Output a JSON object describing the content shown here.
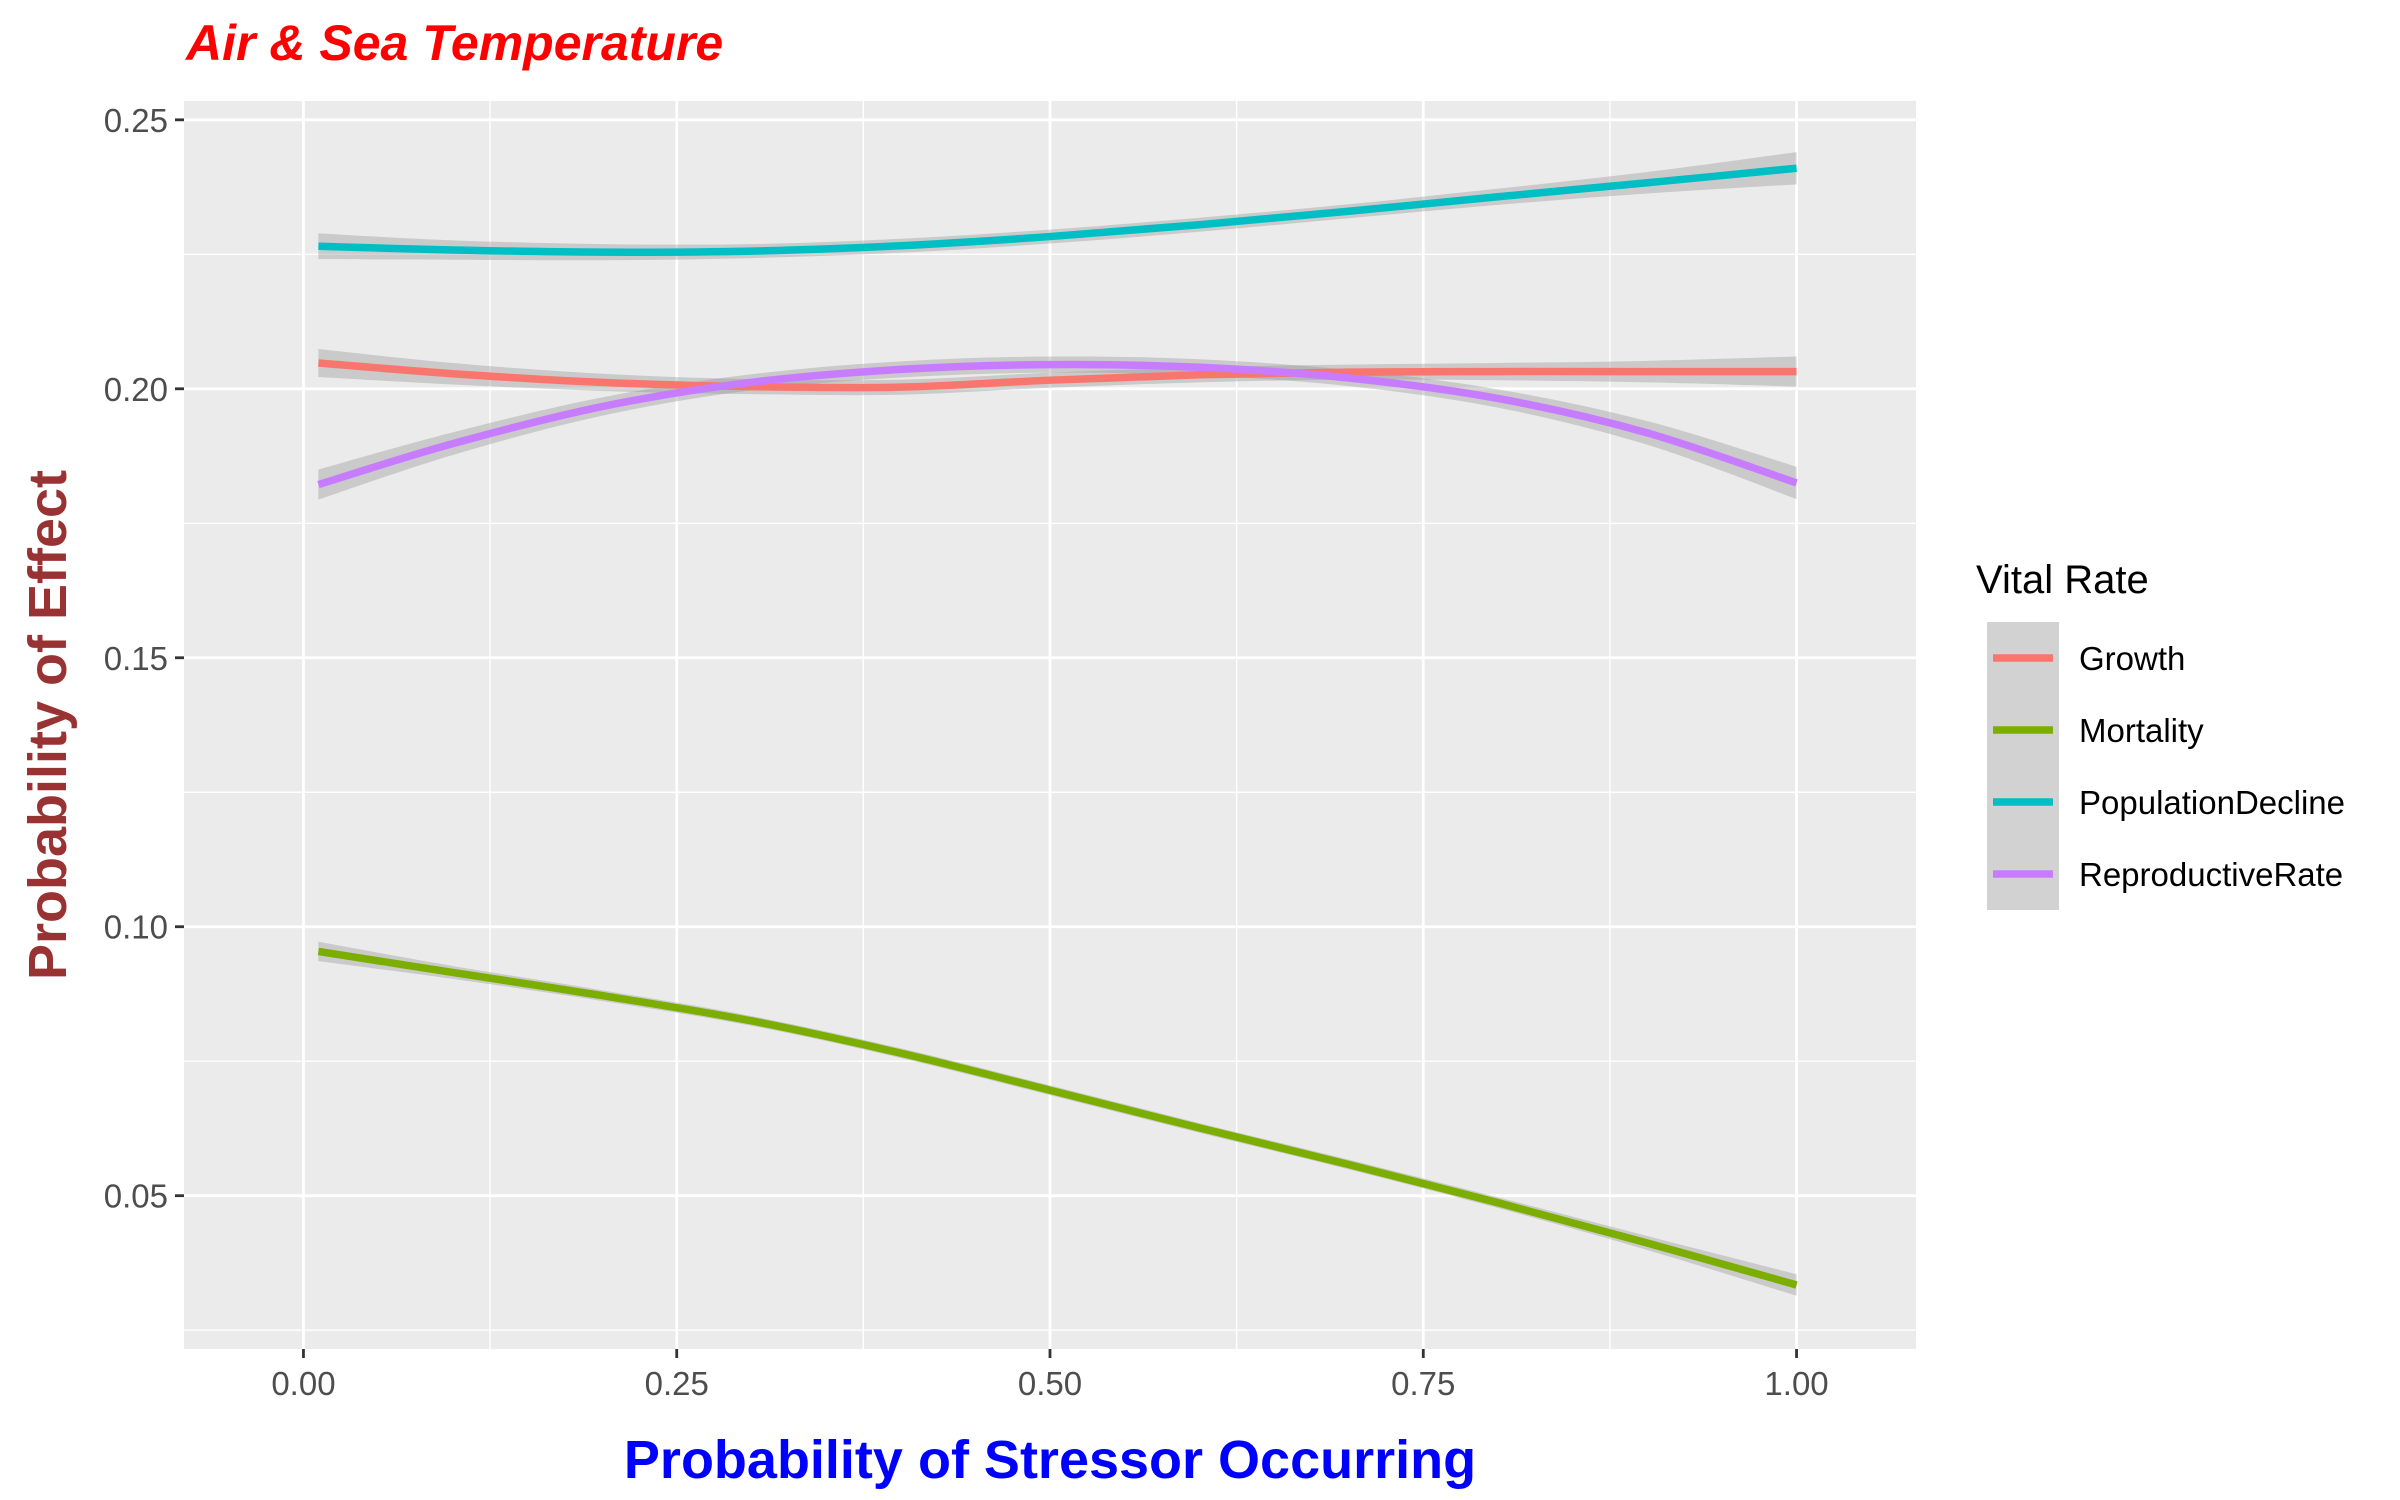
{
  "chart_data": {
    "type": "line",
    "title": "Air & Sea Temperature",
    "xlabel": "Probability of Stressor Occurring",
    "ylabel": "Probability of Effect",
    "xlim": [
      -0.08,
      1.08
    ],
    "ylim": [
      0.0215,
      0.2535
    ],
    "x_ticks": [
      "0.00",
      "0.25",
      "0.50",
      "0.75",
      "1.00"
    ],
    "x_tick_values": [
      0.0,
      0.25,
      0.5,
      0.75,
      1.0
    ],
    "y_ticks": [
      "0.05",
      "0.10",
      "0.15",
      "0.20",
      "0.25"
    ],
    "y_tick_values": [
      0.05,
      0.1,
      0.15,
      0.2,
      0.25
    ],
    "grid": true,
    "legend": {
      "title": "Vital Rate",
      "position": "right"
    },
    "confidence_band": true,
    "series": [
      {
        "name": "Growth",
        "color": "#F8766D",
        "x": [
          0.01,
          0.1,
          0.2,
          0.3,
          0.4,
          0.5,
          0.6,
          0.7,
          0.8,
          0.9,
          1.0
        ],
        "y": [
          0.2048,
          0.2028,
          0.2012,
          0.2004,
          0.2003,
          0.2016,
          0.2026,
          0.2031,
          0.2032,
          0.2032,
          0.2032
        ],
        "band": [
          0.0026,
          0.002,
          0.0016,
          0.0014,
          0.0014,
          0.0014,
          0.0014,
          0.0014,
          0.0016,
          0.002,
          0.0028
        ]
      },
      {
        "name": "Mortality",
        "color": "#7CAE00",
        "x": [
          0.01,
          0.1,
          0.2,
          0.3,
          0.4,
          0.5,
          0.6,
          0.7,
          0.8,
          0.9,
          1.0
        ],
        "y": [
          0.0954,
          0.0915,
          0.0872,
          0.0825,
          0.0765,
          0.0696,
          0.0626,
          0.0558,
          0.0487,
          0.0412,
          0.0334
        ],
        "band": [
          0.0018,
          0.0012,
          0.001,
          0.0009,
          0.0009,
          0.0009,
          0.0009,
          0.0009,
          0.001,
          0.0013,
          0.002
        ]
      },
      {
        "name": "PopulationDecline",
        "color": "#00BFC4",
        "x": [
          0.01,
          0.1,
          0.2,
          0.3,
          0.4,
          0.5,
          0.6,
          0.7,
          0.8,
          0.9,
          1.0
        ],
        "y": [
          0.2265,
          0.2258,
          0.2254,
          0.2256,
          0.2266,
          0.2283,
          0.2305,
          0.233,
          0.2357,
          0.2383,
          0.241
        ],
        "band": [
          0.0024,
          0.0018,
          0.0015,
          0.0013,
          0.0013,
          0.0013,
          0.0013,
          0.0013,
          0.0015,
          0.002,
          0.003
        ]
      },
      {
        "name": "ReproductiveRate",
        "color": "#C77CFF",
        "x": [
          0.01,
          0.1,
          0.2,
          0.3,
          0.4,
          0.5,
          0.6,
          0.7,
          0.8,
          0.9,
          1.0
        ],
        "y": [
          0.1822,
          0.1898,
          0.1967,
          0.2012,
          0.2036,
          0.2045,
          0.204,
          0.202,
          0.1982,
          0.1918,
          0.1825
        ],
        "band": [
          0.0028,
          0.0021,
          0.0017,
          0.0015,
          0.0015,
          0.0015,
          0.0015,
          0.0015,
          0.0017,
          0.0022,
          0.003
        ]
      }
    ]
  }
}
